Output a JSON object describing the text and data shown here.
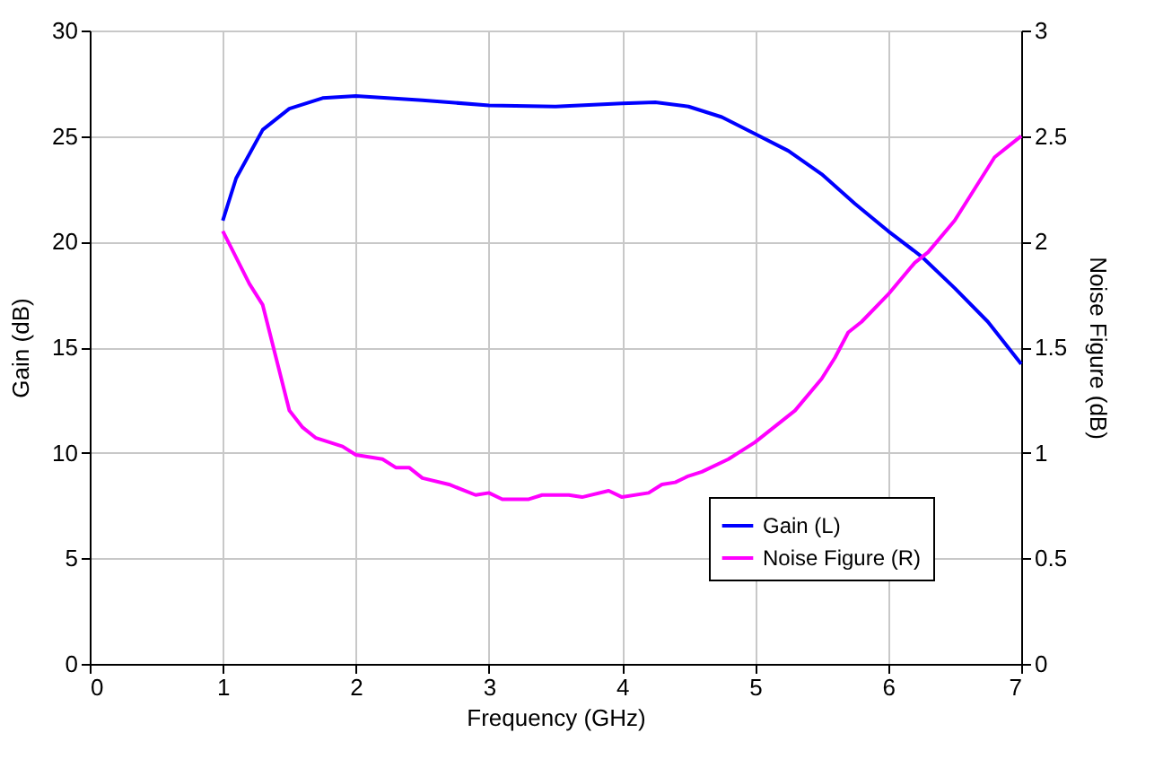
{
  "chart_data": {
    "type": "line",
    "xlabel": "Frequency (GHz)",
    "ylabel": "Gain (dB)",
    "y2label": "Noise Figure (dB)",
    "xlim": [
      0,
      7
    ],
    "xticks": [
      0,
      1,
      2,
      3,
      4,
      5,
      6,
      7
    ],
    "ylim": [
      0,
      30
    ],
    "yticks": [
      0,
      5,
      10,
      15,
      20,
      25,
      30
    ],
    "y2lim": [
      0,
      3
    ],
    "y2ticks": [
      0,
      0.5,
      1,
      1.5,
      2,
      2.5,
      3
    ],
    "grid": true,
    "legend": "bottom right",
    "line_style": "solid",
    "marker": "none",
    "series": [
      {
        "name": "Gain (L)",
        "color": "#0000ff",
        "x": [
          1,
          1.1,
          1.3,
          1.5,
          1.75,
          2,
          2.5,
          3,
          3.5,
          4,
          4.25,
          4.5,
          4.75,
          5,
          5.25,
          5.5,
          5.75,
          6,
          6.25,
          6.5,
          6.75,
          7
        ],
        "values": [
          21,
          23,
          25.3,
          26.3,
          26.8,
          26.9,
          26.7,
          26.45,
          26.4,
          26.55,
          26.6,
          26.4,
          25.9,
          25.1,
          24.3,
          23.2,
          21.8,
          20.5,
          19.3,
          17.8,
          16.2,
          14.2
        ]
      },
      {
        "name": "Noise Figure (R)",
        "color": "#ff00ff",
        "axis": "y2",
        "x": [
          1,
          1.2,
          1.3,
          1.5,
          1.6,
          1.7,
          1.9,
          2,
          2.2,
          2.3,
          2.4,
          2.5,
          2.7,
          2.9,
          3,
          3.1,
          3.3,
          3.4,
          3.6,
          3.7,
          3.9,
          4,
          4.2,
          4.3,
          4.4,
          4.5,
          4.6,
          4.8,
          5,
          5.2,
          5.3,
          5.5,
          5.6,
          5.7,
          5.8,
          6,
          6.2,
          6.3,
          6.5,
          6.7,
          6.8,
          6.9,
          7
        ],
        "values": [
          2.05,
          1.8,
          1.7,
          1.2,
          1.12,
          1.07,
          1.03,
          0.99,
          0.97,
          0.93,
          0.93,
          0.88,
          0.85,
          0.8,
          0.81,
          0.78,
          0.78,
          0.8,
          0.8,
          0.79,
          0.82,
          0.79,
          0.81,
          0.85,
          0.86,
          0.89,
          0.91,
          0.97,
          1.05,
          1.15,
          1.2,
          1.35,
          1.45,
          1.57,
          1.62,
          1.75,
          1.9,
          1.95,
          2.1,
          2.3,
          2.4,
          2.45,
          2.5
        ]
      }
    ]
  }
}
